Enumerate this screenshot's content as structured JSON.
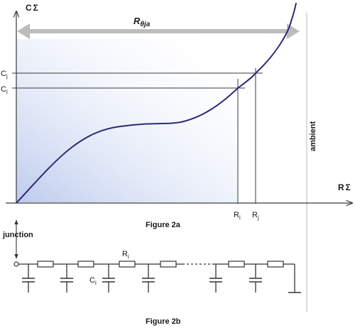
{
  "figure_a": {
    "y_axis_label": "C",
    "y_axis_sigma": "Σ",
    "x_axis_label": "R",
    "x_axis_sigma": "Σ",
    "span_label": "R",
    "span_sub": "θja",
    "c_j_main": "C",
    "c_j_sub": "j",
    "c_i_main": "C",
    "c_i_sub": "i",
    "r_i_main": "R",
    "r_i_sub": "i",
    "r_j_main": "R",
    "r_j_sub": "j",
    "ambient_label": "ambient",
    "caption": "Figure 2a",
    "colors": {
      "curve": "#2b2a78",
      "arrow": "#bcbcbc",
      "shade": "#b9c8ec"
    }
  },
  "figure_b": {
    "junction_label": "junction",
    "resistor_main": "R",
    "resistor_sub": "i",
    "capacitor_main": "C",
    "capacitor_sub": "i",
    "caption": "Figure 2b"
  }
}
